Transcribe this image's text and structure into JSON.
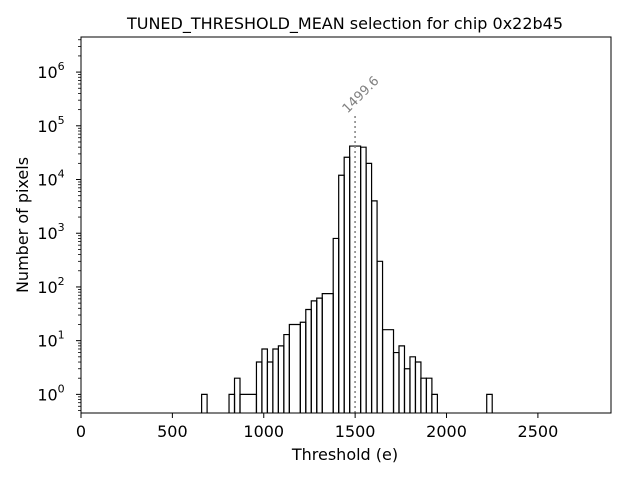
{
  "chart_data": {
    "type": "step-histogram",
    "title": "TUNED_THRESHOLD_MEAN selection for chip 0x22b45",
    "xlabel": "Threshold (e)",
    "ylabel": "Number of pixels",
    "xlim": [
      0,
      2900
    ],
    "ylim": [
      0.45,
      4500000
    ],
    "yscale": "log",
    "x_ticks": [
      0,
      500,
      1000,
      1500,
      2000,
      2500
    ],
    "y_ticks": [
      {
        "value": 1,
        "label_base": "10",
        "label_exp": "0"
      },
      {
        "value": 10,
        "label_base": "10",
        "label_exp": "1"
      },
      {
        "value": 100,
        "label_base": "10",
        "label_exp": "2"
      },
      {
        "value": 1000,
        "label_base": "10",
        "label_exp": "3"
      },
      {
        "value": 10000,
        "label_base": "10",
        "label_exp": "4"
      },
      {
        "value": 100000,
        "label_base": "10",
        "label_exp": "5"
      },
      {
        "value": 1000000,
        "label_base": "10",
        "label_exp": "6"
      }
    ],
    "bins": [
      {
        "start": 660,
        "end": 690,
        "count": 1
      },
      {
        "start": 810,
        "end": 840,
        "count": 1
      },
      {
        "start": 840,
        "end": 870,
        "count": 2
      },
      {
        "start": 870,
        "end": 960,
        "count": 1
      },
      {
        "start": 960,
        "end": 990,
        "count": 4
      },
      {
        "start": 990,
        "end": 1020,
        "count": 7
      },
      {
        "start": 1020,
        "end": 1050,
        "count": 4
      },
      {
        "start": 1050,
        "end": 1080,
        "count": 7
      },
      {
        "start": 1080,
        "end": 1110,
        "count": 8
      },
      {
        "start": 1110,
        "end": 1140,
        "count": 13
      },
      {
        "start": 1140,
        "end": 1200,
        "count": 20
      },
      {
        "start": 1200,
        "end": 1230,
        "count": 22
      },
      {
        "start": 1230,
        "end": 1260,
        "count": 38
      },
      {
        "start": 1260,
        "end": 1290,
        "count": 55
      },
      {
        "start": 1290,
        "end": 1320,
        "count": 62
      },
      {
        "start": 1320,
        "end": 1380,
        "count": 75
      },
      {
        "start": 1380,
        "end": 1410,
        "count": 800
      },
      {
        "start": 1410,
        "end": 1440,
        "count": 12000
      },
      {
        "start": 1440,
        "end": 1470,
        "count": 26000
      },
      {
        "start": 1470,
        "end": 1530,
        "count": 42000
      },
      {
        "start": 1530,
        "end": 1560,
        "count": 40000
      },
      {
        "start": 1560,
        "end": 1590,
        "count": 20000
      },
      {
        "start": 1590,
        "end": 1620,
        "count": 4000
      },
      {
        "start": 1620,
        "end": 1650,
        "count": 300
      },
      {
        "start": 1650,
        "end": 1710,
        "count": 16
      },
      {
        "start": 1710,
        "end": 1740,
        "count": 6
      },
      {
        "start": 1740,
        "end": 1770,
        "count": 8
      },
      {
        "start": 1770,
        "end": 1800,
        "count": 3
      },
      {
        "start": 1800,
        "end": 1830,
        "count": 5
      },
      {
        "start": 1830,
        "end": 1860,
        "count": 4
      },
      {
        "start": 1860,
        "end": 1890,
        "count": 2
      },
      {
        "start": 1890,
        "end": 1920,
        "count": 2
      },
      {
        "start": 1920,
        "end": 1950,
        "count": 1
      },
      {
        "start": 2220,
        "end": 2250,
        "count": 1
      }
    ],
    "mean_marker": {
      "value": 1499.6,
      "label": "1499.6",
      "line_top_value": 165000
    }
  }
}
